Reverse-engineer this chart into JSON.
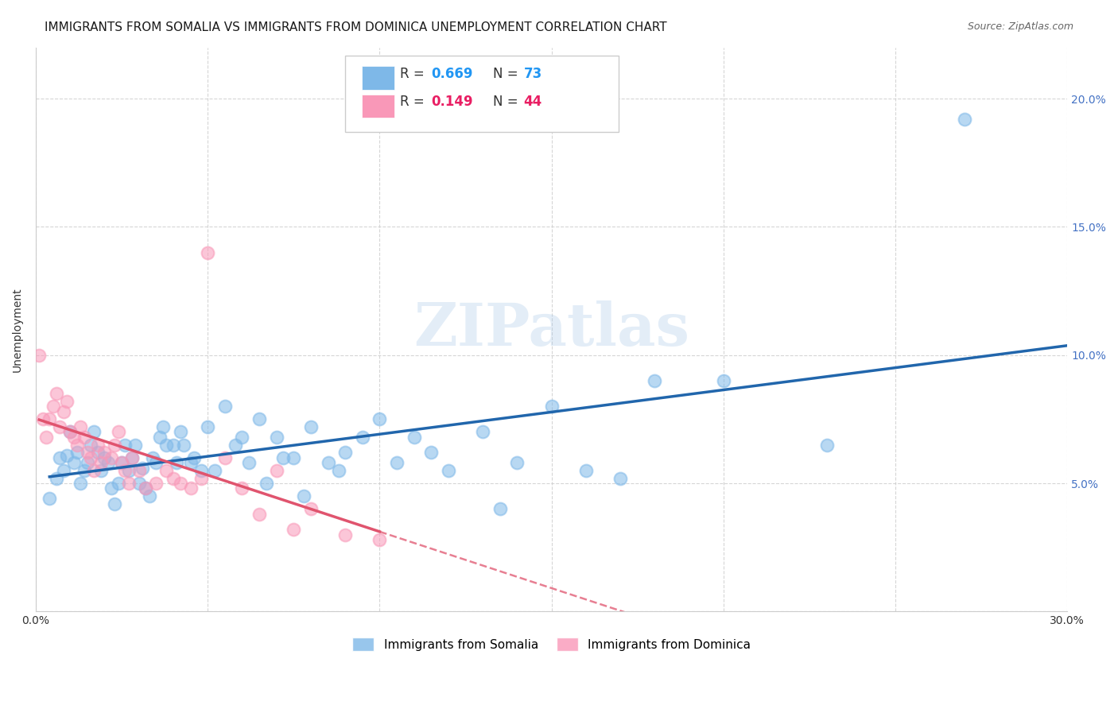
{
  "title": "IMMIGRANTS FROM SOMALIA VS IMMIGRANTS FROM DOMINICA UNEMPLOYMENT CORRELATION CHART",
  "source": "Source: ZipAtlas.com",
  "ylabel": "Unemployment",
  "xlim": [
    0.0,
    0.3
  ],
  "ylim": [
    0.0,
    0.22
  ],
  "somalia_R": 0.669,
  "somalia_N": 73,
  "dominica_R": 0.149,
  "dominica_N": 44,
  "somalia_color": "#7eb8e8",
  "dominica_color": "#f998b8",
  "somalia_line_color": "#2166ac",
  "dominica_line_color": "#e0546e",
  "watermark": "ZIPatlas",
  "background_color": "#ffffff",
  "grid_color": "#cccccc",
  "title_fontsize": 11,
  "source_fontsize": 9,
  "axis_label_fontsize": 10,
  "tick_fontsize": 10,
  "somalia_x": [
    0.004,
    0.006,
    0.007,
    0.008,
    0.009,
    0.01,
    0.011,
    0.012,
    0.013,
    0.014,
    0.015,
    0.016,
    0.017,
    0.018,
    0.019,
    0.02,
    0.021,
    0.022,
    0.023,
    0.024,
    0.025,
    0.026,
    0.027,
    0.028,
    0.029,
    0.03,
    0.031,
    0.032,
    0.033,
    0.034,
    0.035,
    0.036,
    0.037,
    0.038,
    0.04,
    0.041,
    0.042,
    0.043,
    0.045,
    0.046,
    0.048,
    0.05,
    0.052,
    0.055,
    0.058,
    0.06,
    0.062,
    0.065,
    0.067,
    0.07,
    0.072,
    0.075,
    0.078,
    0.08,
    0.085,
    0.088,
    0.09,
    0.095,
    0.1,
    0.105,
    0.11,
    0.115,
    0.12,
    0.13,
    0.135,
    0.14,
    0.15,
    0.16,
    0.17,
    0.18,
    0.2,
    0.23,
    0.27
  ],
  "somalia_y": [
    0.044,
    0.052,
    0.06,
    0.055,
    0.061,
    0.07,
    0.058,
    0.062,
    0.05,
    0.055,
    0.058,
    0.065,
    0.07,
    0.062,
    0.055,
    0.06,
    0.058,
    0.048,
    0.042,
    0.05,
    0.058,
    0.065,
    0.055,
    0.06,
    0.065,
    0.05,
    0.056,
    0.048,
    0.045,
    0.06,
    0.058,
    0.068,
    0.072,
    0.065,
    0.065,
    0.058,
    0.07,
    0.065,
    0.058,
    0.06,
    0.055,
    0.072,
    0.055,
    0.08,
    0.065,
    0.068,
    0.058,
    0.075,
    0.05,
    0.068,
    0.06,
    0.06,
    0.045,
    0.072,
    0.058,
    0.055,
    0.062,
    0.068,
    0.075,
    0.058,
    0.068,
    0.062,
    0.055,
    0.07,
    0.04,
    0.058,
    0.08,
    0.055,
    0.052,
    0.09,
    0.09,
    0.065,
    0.192
  ],
  "dominica_x": [
    0.001,
    0.002,
    0.003,
    0.004,
    0.005,
    0.006,
    0.007,
    0.008,
    0.009,
    0.01,
    0.011,
    0.012,
    0.013,
    0.014,
    0.015,
    0.016,
    0.017,
    0.018,
    0.019,
    0.02,
    0.022,
    0.023,
    0.024,
    0.025,
    0.026,
    0.027,
    0.028,
    0.03,
    0.032,
    0.035,
    0.038,
    0.04,
    0.042,
    0.045,
    0.048,
    0.05,
    0.055,
    0.06,
    0.065,
    0.07,
    0.075,
    0.08,
    0.09,
    0.1
  ],
  "dominica_y": [
    0.1,
    0.075,
    0.068,
    0.075,
    0.08,
    0.085,
    0.072,
    0.078,
    0.082,
    0.07,
    0.068,
    0.065,
    0.072,
    0.068,
    0.062,
    0.06,
    0.055,
    0.065,
    0.058,
    0.062,
    0.06,
    0.065,
    0.07,
    0.058,
    0.055,
    0.05,
    0.06,
    0.055,
    0.048,
    0.05,
    0.055,
    0.052,
    0.05,
    0.048,
    0.052,
    0.14,
    0.06,
    0.048,
    0.038,
    0.055,
    0.032,
    0.04,
    0.03,
    0.028
  ]
}
